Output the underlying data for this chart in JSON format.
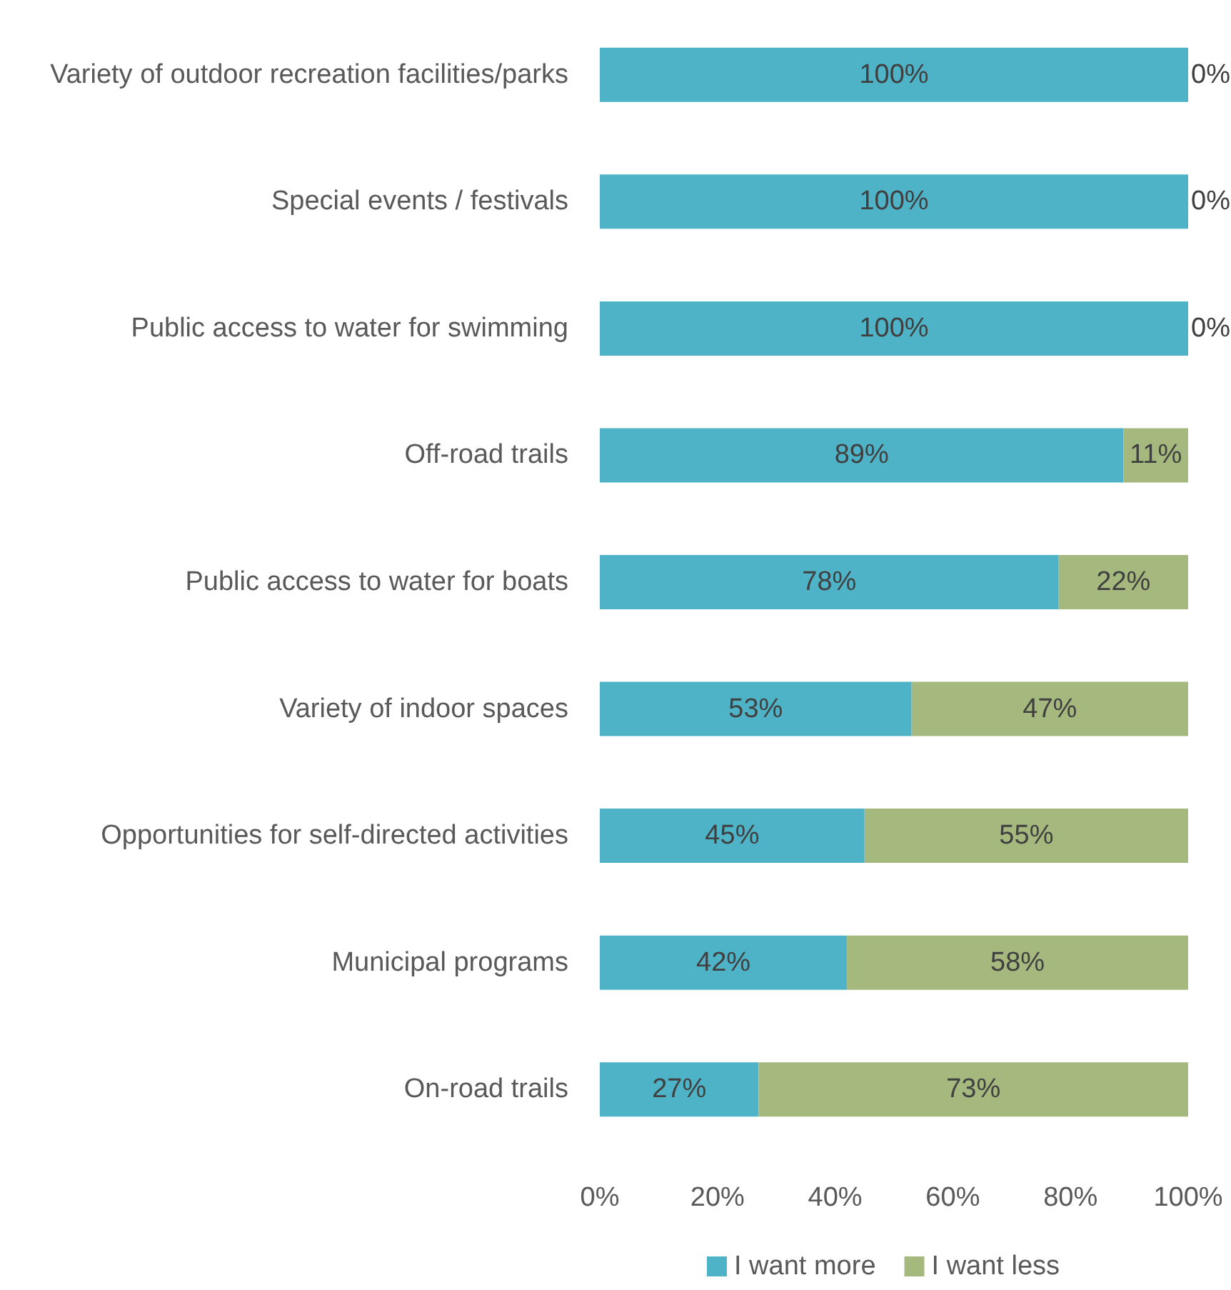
{
  "chart_data": {
    "type": "bar",
    "orientation": "horizontal",
    "stacked": true,
    "categories": [
      "Variety of outdoor recreation facilities/parks",
      "Special events / festivals",
      "Public access to water for swimming",
      "Off-road trails",
      "Public access to water for boats",
      "Variety of indoor spaces",
      "Opportunities for self-directed activities",
      "Municipal programs",
      "On-road trails"
    ],
    "series": [
      {
        "name": "I want more",
        "color": "#4fb3c8",
        "values": [
          100,
          100,
          100,
          89,
          78,
          53,
          45,
          42,
          27
        ],
        "value_labels": [
          "100%",
          "100%",
          "100%",
          "89%",
          "78%",
          "53%",
          "45%",
          "42%",
          "27%"
        ]
      },
      {
        "name": "I want less",
        "color": "#a5b97e",
        "values": [
          0,
          0,
          0,
          11,
          22,
          47,
          55,
          58,
          73
        ],
        "value_labels": [
          "0%",
          "0%",
          "0%",
          "11%",
          "22%",
          "47%",
          "55%",
          "58%",
          "73%"
        ]
      }
    ],
    "xlim": [
      0,
      100
    ],
    "xticks": [
      {
        "value": 0,
        "label": "0%"
      },
      {
        "value": 20,
        "label": "20%"
      },
      {
        "value": 40,
        "label": "40%"
      },
      {
        "value": 60,
        "label": "60%"
      },
      {
        "value": 80,
        "label": "80%"
      },
      {
        "value": 100,
        "label": "100%"
      }
    ],
    "grid": false,
    "legend": "bottom"
  }
}
